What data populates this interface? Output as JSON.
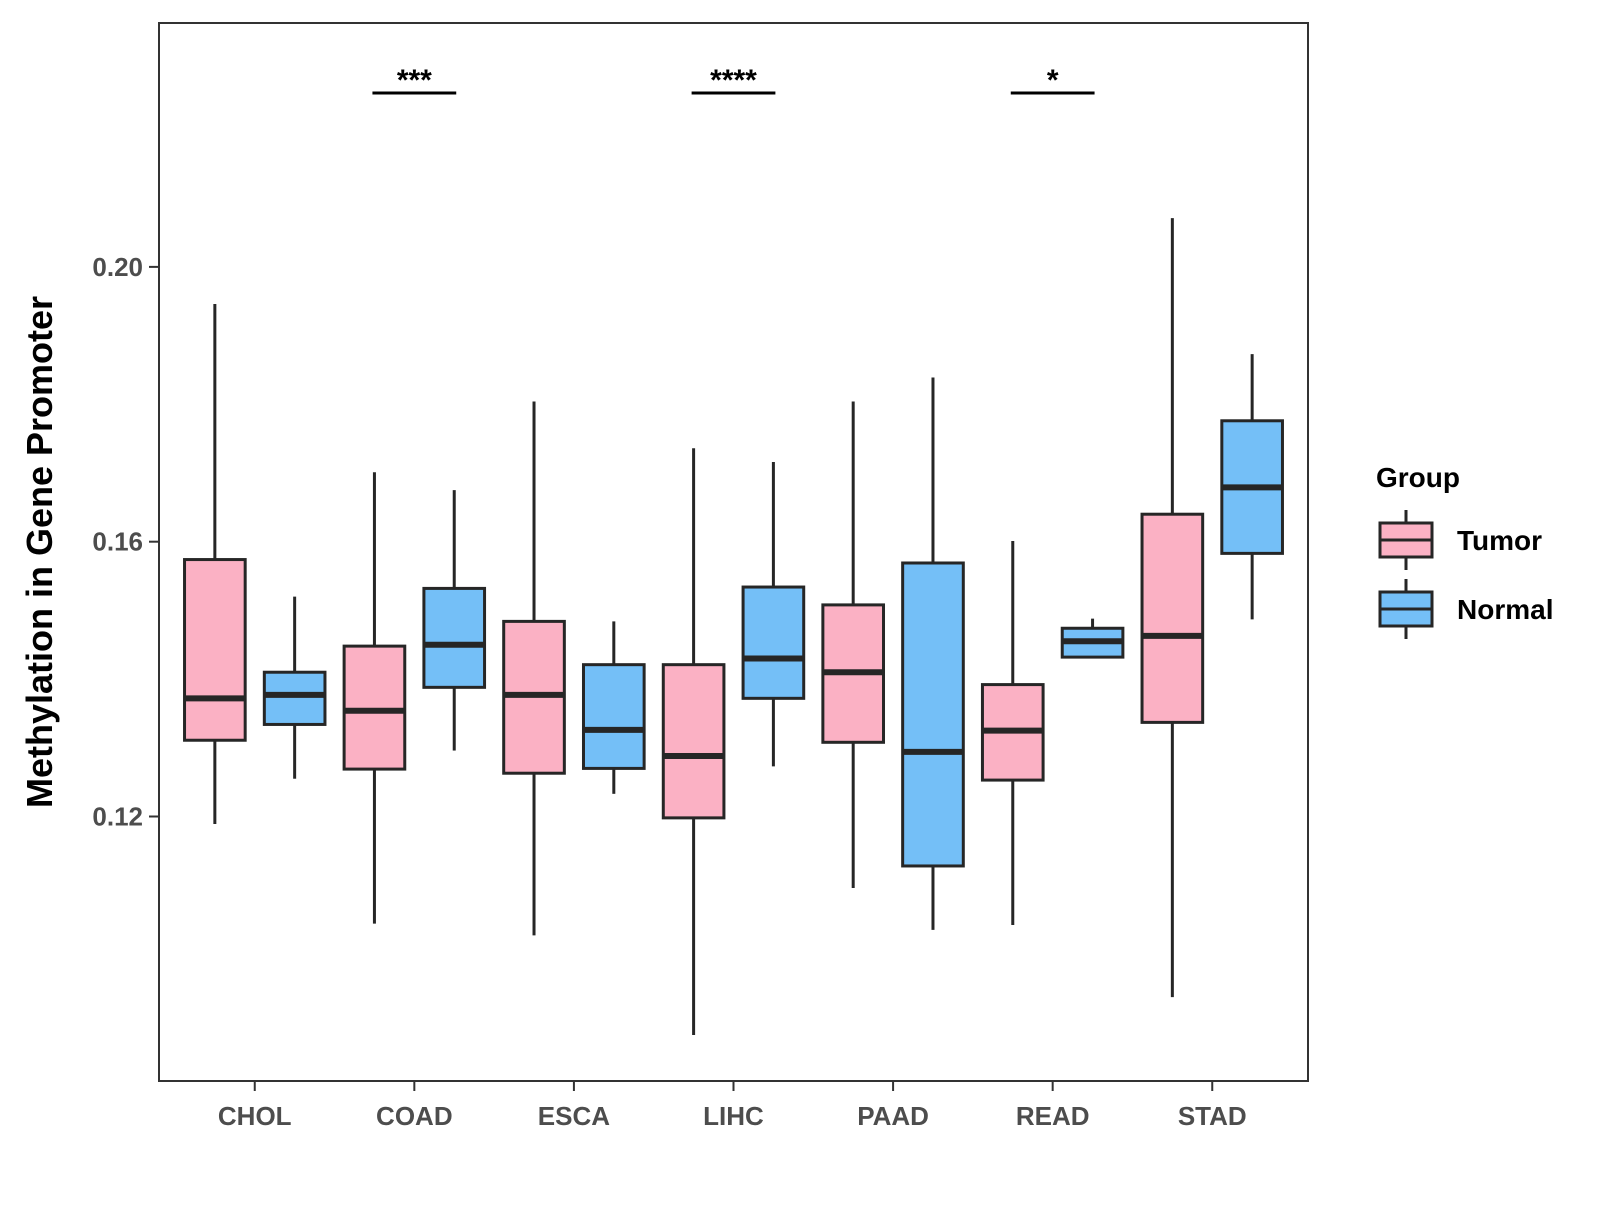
{
  "chart_data": {
    "type": "boxplot",
    "title": "",
    "xlabel": "",
    "ylabel": "Methylation in Gene Promoter",
    "categories": [
      "CHOL",
      "COAD",
      "ESCA",
      "LIHC",
      "PAAD",
      "READ",
      "STAD"
    ],
    "yticks": [
      0.12,
      0.16,
      0.2
    ],
    "ytick_labels": [
      "0.12",
      "0.16",
      "0.20"
    ],
    "ylim": [
      0.0815,
      0.2355
    ],
    "grid": false,
    "legend": {
      "title": "Group",
      "position": "right",
      "entries": [
        "Tumor",
        "Normal"
      ]
    },
    "series": [
      {
        "name": "Tumor",
        "color": "#fbb1c4",
        "boxes": [
          {
            "category": "CHOL",
            "min": 0.1189,
            "q1": 0.1311,
            "median": 0.1372,
            "q3": 0.1574,
            "max": 0.1946
          },
          {
            "category": "COAD",
            "min": 0.1044,
            "q1": 0.1269,
            "median": 0.1354,
            "q3": 0.1448,
            "max": 0.1701
          },
          {
            "category": "ESCA",
            "min": 0.1027,
            "q1": 0.1263,
            "median": 0.1377,
            "q3": 0.1484,
            "max": 0.1804
          },
          {
            "category": "LIHC",
            "min": 0.0882,
            "q1": 0.1198,
            "median": 0.1288,
            "q3": 0.1421,
            "max": 0.1736
          },
          {
            "category": "PAAD",
            "min": 0.1096,
            "q1": 0.1308,
            "median": 0.141,
            "q3": 0.1508,
            "max": 0.1804
          },
          {
            "category": "READ",
            "min": 0.1042,
            "q1": 0.1253,
            "median": 0.1325,
            "q3": 0.1392,
            "max": 0.1601
          },
          {
            "category": "STAD",
            "min": 0.0937,
            "q1": 0.1337,
            "median": 0.1463,
            "q3": 0.164,
            "max": 0.2071
          }
        ]
      },
      {
        "name": "Normal",
        "color": "#74bff7",
        "boxes": [
          {
            "category": "CHOL",
            "min": 0.1255,
            "q1": 0.1334,
            "median": 0.1377,
            "q3": 0.141,
            "max": 0.152
          },
          {
            "category": "COAD",
            "min": 0.1296,
            "q1": 0.1388,
            "median": 0.145,
            "q3": 0.1532,
            "max": 0.1675
          },
          {
            "category": "ESCA",
            "min": 0.1233,
            "q1": 0.127,
            "median": 0.1326,
            "q3": 0.1421,
            "max": 0.1484
          },
          {
            "category": "LIHC",
            "min": 0.1273,
            "q1": 0.1372,
            "median": 0.143,
            "q3": 0.1534,
            "max": 0.1716
          },
          {
            "category": "PAAD",
            "min": 0.1035,
            "q1": 0.1128,
            "median": 0.1294,
            "q3": 0.1569,
            "max": 0.1839
          },
          {
            "category": "READ",
            "min": 0.1432,
            "q1": 0.1432,
            "median": 0.1455,
            "q3": 0.1474,
            "max": 0.1488
          },
          {
            "category": "STAD",
            "min": 0.1487,
            "q1": 0.1583,
            "median": 0.1679,
            "q3": 0.1776,
            "max": 0.1873
          }
        ]
      }
    ],
    "annotations": [
      {
        "category": "COAD",
        "label": "***"
      },
      {
        "category": "LIHC",
        "label": "****"
      },
      {
        "category": "READ",
        "label": "*"
      }
    ]
  }
}
